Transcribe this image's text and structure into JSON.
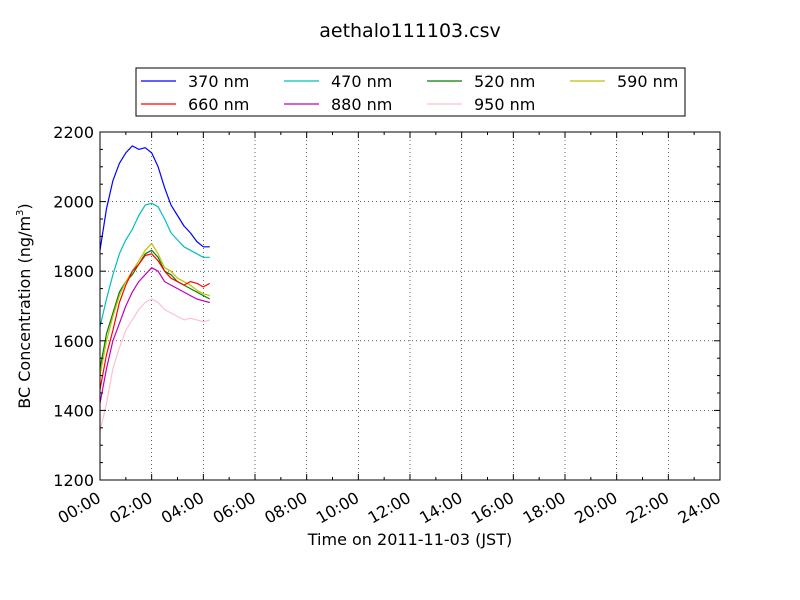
{
  "chart_data": {
    "type": "line",
    "title": "aethalo111103.csv",
    "xlabel": "Time on 2011-11-03 (JST)",
    "ylabel": "BC Concentration (ng/m",
    "ylabel_sup": "3",
    "ylabel_close": ")",
    "xlim": [
      0,
      24
    ],
    "ylim": [
      1200,
      2200
    ],
    "grid": true,
    "legend_position": "top",
    "x_ticks": [
      {
        "value": 0,
        "label": "00:00"
      },
      {
        "value": 2,
        "label": "02:00"
      },
      {
        "value": 4,
        "label": "04:00"
      },
      {
        "value": 6,
        "label": "06:00"
      },
      {
        "value": 8,
        "label": "08:00"
      },
      {
        "value": 10,
        "label": "10:00"
      },
      {
        "value": 12,
        "label": "12:00"
      },
      {
        "value": 14,
        "label": "14:00"
      },
      {
        "value": 16,
        "label": "16:00"
      },
      {
        "value": 18,
        "label": "18:00"
      },
      {
        "value": 20,
        "label": "20:00"
      },
      {
        "value": 22,
        "label": "22:00"
      },
      {
        "value": 24,
        "label": "24:00"
      }
    ],
    "y_ticks": [
      {
        "value": 1200,
        "label": "1200"
      },
      {
        "value": 1400,
        "label": "1400"
      },
      {
        "value": 1600,
        "label": "1600"
      },
      {
        "value": 1800,
        "label": "1800"
      },
      {
        "value": 2000,
        "label": "2000"
      },
      {
        "value": 2200,
        "label": "2200"
      }
    ],
    "x": [
      0.0,
      0.25,
      0.5,
      0.75,
      1.0,
      1.25,
      1.5,
      1.75,
      2.0,
      2.25,
      2.5,
      2.75,
      3.0,
      3.25,
      3.5,
      3.75,
      4.0,
      4.25
    ],
    "series": [
      {
        "name": "370 nm",
        "color": "#0000ff",
        "values": [
          1860,
          1980,
          2060,
          2110,
          2140,
          2160,
          2150,
          2155,
          2140,
          2100,
          2040,
          1990,
          1960,
          1930,
          1910,
          1885,
          1870,
          1870
        ]
      },
      {
        "name": "470 nm",
        "color": "#00bfbf",
        "values": [
          1640,
          1720,
          1790,
          1850,
          1890,
          1920,
          1960,
          1990,
          1995,
          1985,
          1950,
          1910,
          1890,
          1870,
          1860,
          1850,
          1840,
          1840
        ]
      },
      {
        "name": "520 nm",
        "color": "#008000",
        "values": [
          1520,
          1620,
          1680,
          1740,
          1770,
          1790,
          1820,
          1850,
          1860,
          1840,
          1800,
          1790,
          1770,
          1760,
          1750,
          1740,
          1730,
          1720
        ]
      },
      {
        "name": "590 nm",
        "color": "#bfbf00",
        "values": [
          1500,
          1600,
          1670,
          1730,
          1770,
          1800,
          1830,
          1860,
          1880,
          1850,
          1810,
          1800,
          1780,
          1770,
          1760,
          1745,
          1735,
          1730
        ]
      },
      {
        "name": "660 nm",
        "color": "#ff0000",
        "values": [
          1460,
          1560,
          1630,
          1710,
          1760,
          1800,
          1820,
          1845,
          1850,
          1830,
          1800,
          1780,
          1770,
          1760,
          1770,
          1765,
          1755,
          1765
        ]
      },
      {
        "name": "880 nm",
        "color": "#bf00bf",
        "values": [
          1420,
          1520,
          1600,
          1650,
          1700,
          1740,
          1770,
          1790,
          1810,
          1800,
          1770,
          1760,
          1750,
          1740,
          1730,
          1720,
          1715,
          1710
        ]
      },
      {
        "name": "950 nm",
        "color": "#ffc0cb",
        "values": [
          1340,
          1420,
          1520,
          1580,
          1630,
          1660,
          1690,
          1710,
          1720,
          1710,
          1690,
          1680,
          1670,
          1660,
          1665,
          1660,
          1655,
          1660
        ]
      }
    ]
  }
}
